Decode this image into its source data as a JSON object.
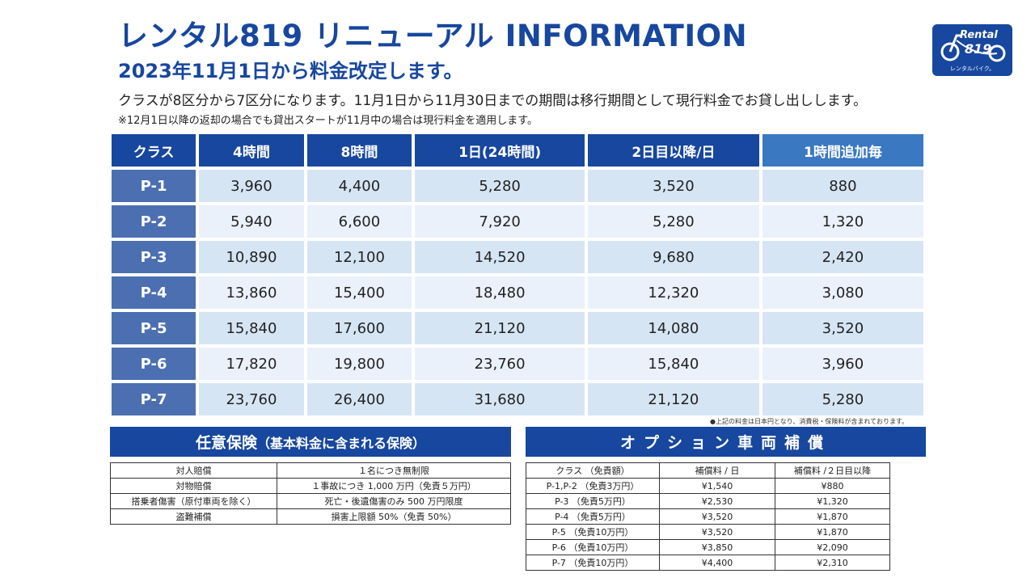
{
  "header": {
    "title": "レンタル819 リニューアル INFORMATION",
    "subtitle": "2023年11月1日から料金改定します。",
    "description": "クラスが8区分から7区分になります。11月1日から11月30日までの期間は移行期間として現行料金でお貸し出しします。",
    "note": "※12月1日以降の返却の場合でも貸出スタートが11月中の場合は現行料金を適用します。"
  },
  "logo": {
    "text": "Rental",
    "number": "819",
    "subtext": "レンタルバイク。"
  },
  "price_table": {
    "headers": [
      "クラス",
      "4時間",
      "8時間",
      "1日(24時間)",
      "2日目以降/日",
      "1時間追加毎"
    ],
    "rows": [
      [
        "P-1",
        "3,960",
        "4,400",
        "5,280",
        "3,520",
        "880"
      ],
      [
        "P-2",
        "5,940",
        "6,600",
        "7,920",
        "5,280",
        "1,320"
      ],
      [
        "P-3",
        "10,890",
        "12,100",
        "14,520",
        "9,680",
        "2,420"
      ],
      [
        "P-4",
        "13,860",
        "15,400",
        "18,480",
        "12,320",
        "3,080"
      ],
      [
        "P-5",
        "15,840",
        "17,600",
        "21,120",
        "14,080",
        "3,520"
      ],
      [
        "P-6",
        "17,820",
        "19,800",
        "23,760",
        "15,840",
        "3,960"
      ],
      [
        "P-7",
        "23,760",
        "26,400",
        "31,680",
        "21,120",
        "5,280"
      ]
    ],
    "tax_note": "●上記の料金は日本円となり、消費税・保険料が含まれております。"
  },
  "insurance": {
    "title": "任意保険",
    "title_small": "（基本料金に含まれる保険）",
    "rows": [
      [
        "対人賠償",
        "１名につき無制限"
      ],
      [
        "対物賠償",
        "１事故につき 1,000 万円（免責５万円）"
      ],
      [
        "搭乗者傷害（原付車両を除く）",
        "死亡・後遺傷害のみ 500 万円限度"
      ],
      [
        "盗難補償",
        "損害上限額 50%（免責 50%）"
      ]
    ]
  },
  "option": {
    "title": "オプション車両補償",
    "headers": [
      "クラス （免責額）",
      "補償料 / 日",
      "補償料 /２日目以降"
    ],
    "rows": [
      [
        "P-1,P-2 （免責3万円）",
        "¥1,540",
        "¥880"
      ],
      [
        "P-3 （免責5万円）",
        "¥2,530",
        "¥1,320"
      ],
      [
        "P-4 （免責5万円）",
        "¥3,520",
        "¥1,870"
      ],
      [
        "P-5 （免責10万円）",
        "¥3,520",
        "¥1,870"
      ],
      [
        "P-6 （免責10万円）",
        "¥3,850",
        "¥2,090"
      ],
      [
        "P-7 （免責10万円）",
        "¥4,400",
        "¥2,310"
      ]
    ]
  },
  "colors": {
    "brand_blue": "#17479e",
    "class_cell": "#4b6fb0",
    "accent_header": "#3a78c2",
    "row_light": "#d6e5f4",
    "row_lighter": "#eaf1fa"
  }
}
